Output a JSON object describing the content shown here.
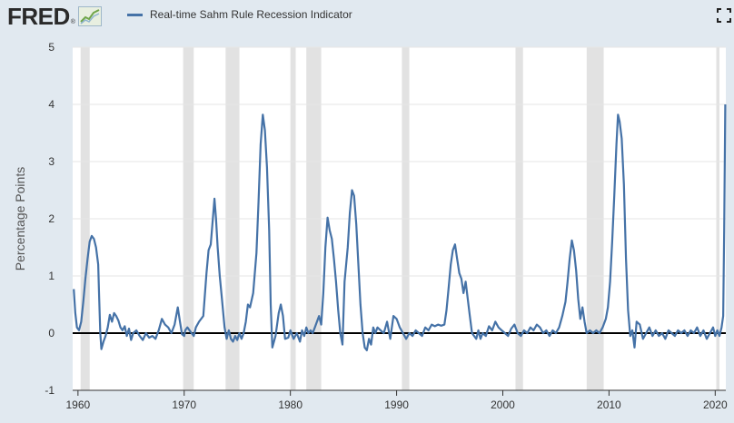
{
  "brand": {
    "name": "FRED",
    "registered": "®"
  },
  "legend": {
    "label": "Real-time Sahm Rule Recession Indicator",
    "color": "#4572a7"
  },
  "icons": {
    "fullscreen": "fullscreen-icon",
    "logo": "fred-graph-icon"
  },
  "colors": {
    "background": "#e1e9f0",
    "plot_bg": "#ffffff",
    "series": "#4572a7",
    "recession": "#e2e2e2",
    "zero_line": "#000000",
    "grid": "#e6e6e6"
  },
  "chart_data": {
    "type": "line",
    "title": "",
    "xlabel": "",
    "ylabel": "Percentage Points",
    "xlim": [
      1959.5,
      2021.0
    ],
    "ylim": [
      -1,
      5
    ],
    "grid": true,
    "legend_position": "top-left",
    "x_ticks": [
      {
        "value": 1960,
        "label": "1960"
      },
      {
        "value": 1970,
        "label": "1970"
      },
      {
        "value": 1980,
        "label": "1980"
      },
      {
        "value": 1990,
        "label": "1990"
      },
      {
        "value": 2000,
        "label": "2000"
      },
      {
        "value": 2010,
        "label": "2010"
      },
      {
        "value": 2020,
        "label": "2020"
      }
    ],
    "y_ticks": [
      {
        "value": -1,
        "label": "-1"
      },
      {
        "value": 0,
        "label": "0"
      },
      {
        "value": 1,
        "label": "1"
      },
      {
        "value": 2,
        "label": "2"
      },
      {
        "value": 3,
        "label": "3"
      },
      {
        "value": 4,
        "label": "4"
      },
      {
        "value": 5,
        "label": "5"
      }
    ],
    "recessions": [
      [
        1960.25,
        1961.1
      ],
      [
        1969.9,
        1970.9
      ],
      [
        1973.9,
        1975.2
      ],
      [
        1980.0,
        1980.5
      ],
      [
        1981.5,
        1982.9
      ],
      [
        1990.5,
        1991.2
      ],
      [
        2001.2,
        2001.9
      ],
      [
        2007.9,
        2009.5
      ],
      [
        2020.1,
        2020.4
      ]
    ],
    "series": [
      {
        "name": "Real-time Sahm Rule Recession Indicator",
        "points": [
          [
            1959.6,
            0.77
          ],
          [
            1959.75,
            0.35
          ],
          [
            1959.9,
            0.1
          ],
          [
            1960.1,
            0.05
          ],
          [
            1960.3,
            0.2
          ],
          [
            1960.5,
            0.55
          ],
          [
            1960.7,
            0.95
          ],
          [
            1960.9,
            1.3
          ],
          [
            1961.1,
            1.6
          ],
          [
            1961.3,
            1.7
          ],
          [
            1961.5,
            1.65
          ],
          [
            1961.7,
            1.5
          ],
          [
            1961.9,
            1.2
          ],
          [
            1962.0,
            0.6
          ],
          [
            1962.1,
            0.0
          ],
          [
            1962.2,
            -0.28
          ],
          [
            1962.4,
            -0.15
          ],
          [
            1962.6,
            -0.05
          ],
          [
            1962.8,
            0.1
          ],
          [
            1963.0,
            0.32
          ],
          [
            1963.2,
            0.2
          ],
          [
            1963.4,
            0.35
          ],
          [
            1963.6,
            0.3
          ],
          [
            1963.8,
            0.22
          ],
          [
            1964.0,
            0.1
          ],
          [
            1964.2,
            0.05
          ],
          [
            1964.4,
            0.12
          ],
          [
            1964.6,
            -0.05
          ],
          [
            1964.8,
            0.08
          ],
          [
            1965.0,
            -0.12
          ],
          [
            1965.2,
            0.0
          ],
          [
            1965.5,
            0.05
          ],
          [
            1965.8,
            -0.05
          ],
          [
            1966.1,
            -0.12
          ],
          [
            1966.4,
            0.0
          ],
          [
            1966.7,
            -0.08
          ],
          [
            1967.0,
            -0.05
          ],
          [
            1967.3,
            -0.1
          ],
          [
            1967.6,
            0.05
          ],
          [
            1967.9,
            0.25
          ],
          [
            1968.2,
            0.15
          ],
          [
            1968.5,
            0.1
          ],
          [
            1968.8,
            0.0
          ],
          [
            1969.1,
            0.15
          ],
          [
            1969.4,
            0.45
          ],
          [
            1969.6,
            0.2
          ],
          [
            1969.8,
            -0.02
          ],
          [
            1970.0,
            -0.05
          ],
          [
            1970.1,
            0.05
          ],
          [
            1970.3,
            0.1
          ],
          [
            1970.5,
            0.05
          ],
          [
            1970.7,
            0.0
          ],
          [
            1970.9,
            -0.05
          ],
          [
            1971.1,
            0.1
          ],
          [
            1971.4,
            0.2
          ],
          [
            1971.8,
            0.3
          ],
          [
            1972.1,
            1.05
          ],
          [
            1972.3,
            1.45
          ],
          [
            1972.5,
            1.55
          ],
          [
            1972.7,
            2.0
          ],
          [
            1972.85,
            2.35
          ],
          [
            1973.0,
            2.0
          ],
          [
            1973.15,
            1.5
          ],
          [
            1973.35,
            1.0
          ],
          [
            1973.55,
            0.6
          ],
          [
            1973.8,
            0.1
          ],
          [
            1974.0,
            -0.1
          ],
          [
            1974.2,
            0.05
          ],
          [
            1974.4,
            -0.1
          ],
          [
            1974.6,
            -0.15
          ],
          [
            1974.8,
            -0.05
          ],
          [
            1975.0,
            -0.12
          ],
          [
            1975.2,
            0.0
          ],
          [
            1975.4,
            -0.1
          ],
          [
            1975.6,
            0.0
          ],
          [
            1975.8,
            0.2
          ],
          [
            1976.0,
            0.5
          ],
          [
            1976.2,
            0.45
          ],
          [
            1976.5,
            0.7
          ],
          [
            1976.8,
            1.4
          ],
          [
            1977.0,
            2.3
          ],
          [
            1977.2,
            3.3
          ],
          [
            1977.4,
            3.82
          ],
          [
            1977.6,
            3.55
          ],
          [
            1977.8,
            2.9
          ],
          [
            1978.0,
            1.8
          ],
          [
            1978.15,
            0.5
          ],
          [
            1978.3,
            -0.25
          ],
          [
            1978.6,
            -0.05
          ],
          [
            1978.9,
            0.35
          ],
          [
            1979.1,
            0.5
          ],
          [
            1979.3,
            0.3
          ],
          [
            1979.5,
            -0.1
          ],
          [
            1979.8,
            -0.08
          ],
          [
            1980.0,
            0.05
          ],
          [
            1980.3,
            -0.1
          ],
          [
            1980.6,
            0.0
          ],
          [
            1980.9,
            -0.15
          ],
          [
            1981.1,
            0.05
          ],
          [
            1981.3,
            -0.05
          ],
          [
            1981.5,
            0.1
          ],
          [
            1981.7,
            0.0
          ],
          [
            1981.9,
            0.05
          ],
          [
            1982.1,
            0.0
          ],
          [
            1982.3,
            0.1
          ],
          [
            1982.5,
            0.2
          ],
          [
            1982.7,
            0.3
          ],
          [
            1982.9,
            0.15
          ],
          [
            1983.1,
            0.7
          ],
          [
            1983.3,
            1.5
          ],
          [
            1983.5,
            2.02
          ],
          [
            1983.7,
            1.8
          ],
          [
            1983.9,
            1.65
          ],
          [
            1984.1,
            1.3
          ],
          [
            1984.3,
            0.9
          ],
          [
            1984.5,
            0.4
          ],
          [
            1984.7,
            0.0
          ],
          [
            1984.9,
            -0.2
          ],
          [
            1985.1,
            0.9
          ],
          [
            1985.4,
            1.5
          ],
          [
            1985.6,
            2.1
          ],
          [
            1985.8,
            2.5
          ],
          [
            1986.0,
            2.4
          ],
          [
            1986.2,
            1.9
          ],
          [
            1986.4,
            1.2
          ],
          [
            1986.6,
            0.5
          ],
          [
            1986.8,
            0.0
          ],
          [
            1987.0,
            -0.25
          ],
          [
            1987.2,
            -0.3
          ],
          [
            1987.4,
            -0.1
          ],
          [
            1987.6,
            -0.2
          ],
          [
            1987.8,
            0.1
          ],
          [
            1988.0,
            0.0
          ],
          [
            1988.2,
            0.1
          ],
          [
            1988.5,
            0.05
          ],
          [
            1988.8,
            0.0
          ],
          [
            1989.1,
            0.2
          ],
          [
            1989.4,
            -0.1
          ],
          [
            1989.7,
            0.3
          ],
          [
            1990.0,
            0.25
          ],
          [
            1990.3,
            0.1
          ],
          [
            1990.6,
            0.0
          ],
          [
            1990.9,
            -0.1
          ],
          [
            1991.2,
            0.0
          ],
          [
            1991.5,
            -0.05
          ],
          [
            1991.8,
            0.05
          ],
          [
            1992.1,
            0.0
          ],
          [
            1992.4,
            -0.05
          ],
          [
            1992.7,
            0.1
          ],
          [
            1993.0,
            0.05
          ],
          [
            1993.3,
            0.15
          ],
          [
            1993.6,
            0.12
          ],
          [
            1993.9,
            0.15
          ],
          [
            1994.2,
            0.13
          ],
          [
            1994.5,
            0.15
          ],
          [
            1994.7,
            0.4
          ],
          [
            1994.9,
            0.8
          ],
          [
            1995.1,
            1.2
          ],
          [
            1995.3,
            1.45
          ],
          [
            1995.5,
            1.55
          ],
          [
            1995.7,
            1.3
          ],
          [
            1995.9,
            1.05
          ],
          [
            1996.1,
            0.95
          ],
          [
            1996.3,
            0.7
          ],
          [
            1996.5,
            0.9
          ],
          [
            1996.7,
            0.6
          ],
          [
            1996.9,
            0.3
          ],
          [
            1997.1,
            0.0
          ],
          [
            1997.3,
            -0.05
          ],
          [
            1997.5,
            -0.1
          ],
          [
            1997.7,
            0.05
          ],
          [
            1997.9,
            -0.1
          ],
          [
            1998.1,
            0.0
          ],
          [
            1998.4,
            -0.05
          ],
          [
            1998.7,
            0.12
          ],
          [
            1999.0,
            0.05
          ],
          [
            1999.3,
            0.2
          ],
          [
            1999.6,
            0.1
          ],
          [
            1999.9,
            0.05
          ],
          [
            2000.2,
            0.0
          ],
          [
            2000.5,
            -0.05
          ],
          [
            2000.8,
            0.08
          ],
          [
            2001.1,
            0.15
          ],
          [
            2001.4,
            0.0
          ],
          [
            2001.7,
            -0.05
          ],
          [
            2002.0,
            0.05
          ],
          [
            2002.3,
            0.0
          ],
          [
            2002.6,
            0.1
          ],
          [
            2002.9,
            0.05
          ],
          [
            2003.2,
            0.15
          ],
          [
            2003.5,
            0.1
          ],
          [
            2003.8,
            0.0
          ],
          [
            2004.1,
            0.05
          ],
          [
            2004.4,
            -0.05
          ],
          [
            2004.7,
            0.05
          ],
          [
            2005.0,
            0.0
          ],
          [
            2005.3,
            0.1
          ],
          [
            2005.6,
            0.3
          ],
          [
            2005.9,
            0.55
          ],
          [
            2006.1,
            0.9
          ],
          [
            2006.3,
            1.3
          ],
          [
            2006.5,
            1.62
          ],
          [
            2006.7,
            1.45
          ],
          [
            2006.9,
            1.1
          ],
          [
            2007.1,
            0.6
          ],
          [
            2007.3,
            0.25
          ],
          [
            2007.5,
            0.45
          ],
          [
            2007.7,
            0.2
          ],
          [
            2007.9,
            0.0
          ],
          [
            2008.2,
            0.05
          ],
          [
            2008.5,
            0.0
          ],
          [
            2008.8,
            0.05
          ],
          [
            2009.1,
            0.0
          ],
          [
            2009.4,
            0.1
          ],
          [
            2009.7,
            0.25
          ],
          [
            2009.9,
            0.45
          ],
          [
            2010.1,
            0.9
          ],
          [
            2010.3,
            1.6
          ],
          [
            2010.5,
            2.4
          ],
          [
            2010.7,
            3.3
          ],
          [
            2010.85,
            3.82
          ],
          [
            2011.0,
            3.7
          ],
          [
            2011.2,
            3.4
          ],
          [
            2011.4,
            2.6
          ],
          [
            2011.6,
            1.3
          ],
          [
            2011.8,
            0.4
          ],
          [
            2012.0,
            -0.05
          ],
          [
            2012.2,
            0.05
          ],
          [
            2012.4,
            -0.25
          ],
          [
            2012.6,
            0.2
          ],
          [
            2012.9,
            0.15
          ],
          [
            2013.2,
            -0.1
          ],
          [
            2013.5,
            0.0
          ],
          [
            2013.8,
            0.1
          ],
          [
            2014.1,
            -0.05
          ],
          [
            2014.4,
            0.05
          ],
          [
            2014.7,
            -0.05
          ],
          [
            2015.0,
            0.0
          ],
          [
            2015.3,
            -0.1
          ],
          [
            2015.6,
            0.05
          ],
          [
            2015.9,
            0.0
          ],
          [
            2016.2,
            -0.05
          ],
          [
            2016.5,
            0.05
          ],
          [
            2016.8,
            0.0
          ],
          [
            2017.1,
            0.05
          ],
          [
            2017.4,
            -0.05
          ],
          [
            2017.7,
            0.05
          ],
          [
            2018.0,
            0.0
          ],
          [
            2018.3,
            0.1
          ],
          [
            2018.6,
            -0.05
          ],
          [
            2018.9,
            0.05
          ],
          [
            2019.2,
            -0.1
          ],
          [
            2019.5,
            0.0
          ],
          [
            2019.8,
            0.1
          ],
          [
            2020.0,
            -0.05
          ],
          [
            2020.2,
            0.05
          ],
          [
            2020.4,
            -0.05
          ],
          [
            2020.6,
            0.1
          ],
          [
            2020.75,
            0.3
          ],
          [
            2020.85,
            1.8
          ],
          [
            2020.95,
            4.0
          ]
        ]
      }
    ]
  }
}
